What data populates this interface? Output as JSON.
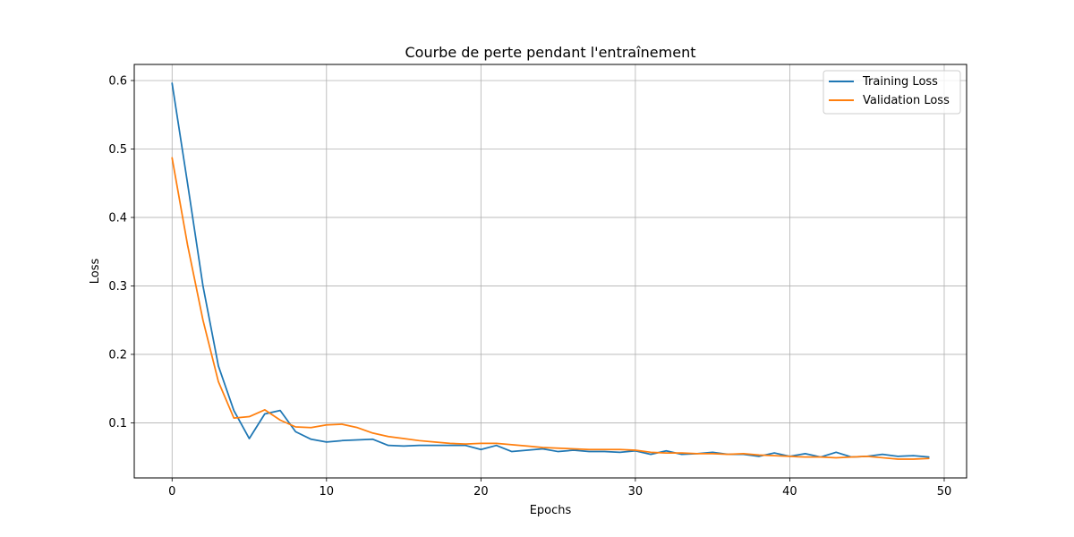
{
  "chart_data": {
    "type": "line",
    "title": "Courbe de perte pendant l'entraînement",
    "xlabel": "Epochs",
    "ylabel": "Loss",
    "xlim": [
      -2.45,
      51.45
    ],
    "ylim": [
      0.0195,
      0.6235
    ],
    "xticks": [
      0,
      10,
      20,
      30,
      40,
      50
    ],
    "yticks": [
      0.1,
      0.2,
      0.3,
      0.4,
      0.5,
      0.6
    ],
    "xtick_labels": [
      "0",
      "10",
      "20",
      "30",
      "40",
      "50"
    ],
    "ytick_labels": [
      "0.1",
      "0.2",
      "0.3",
      "0.4",
      "0.5",
      "0.6"
    ],
    "grid": true,
    "legend_position": "top-right",
    "x": [
      0,
      1,
      2,
      3,
      4,
      5,
      6,
      7,
      8,
      9,
      10,
      11,
      12,
      13,
      14,
      15,
      16,
      17,
      18,
      19,
      20,
      21,
      22,
      23,
      24,
      25,
      26,
      27,
      28,
      29,
      30,
      31,
      32,
      33,
      34,
      35,
      36,
      37,
      38,
      39,
      40,
      41,
      42,
      43,
      44,
      45,
      46,
      47,
      48,
      49
    ],
    "series": [
      {
        "name": "Training Loss",
        "color": "#1f77b4",
        "values": [
          0.596,
          0.45,
          0.3,
          0.183,
          0.118,
          0.077,
          0.113,
          0.118,
          0.087,
          0.076,
          0.072,
          0.074,
          0.075,
          0.076,
          0.067,
          0.066,
          0.067,
          0.067,
          0.067,
          0.067,
          0.061,
          0.067,
          0.058,
          0.06,
          0.062,
          0.058,
          0.06,
          0.058,
          0.058,
          0.057,
          0.059,
          0.054,
          0.059,
          0.054,
          0.055,
          0.057,
          0.054,
          0.054,
          0.051,
          0.056,
          0.051,
          0.055,
          0.05,
          0.057,
          0.05,
          0.051,
          0.054,
          0.051,
          0.052,
          0.05
        ]
      },
      {
        "name": "Validation Loss",
        "color": "#ff7f0e",
        "values": [
          0.487,
          0.36,
          0.25,
          0.16,
          0.107,
          0.109,
          0.119,
          0.104,
          0.094,
          0.093,
          0.097,
          0.098,
          0.093,
          0.085,
          0.08,
          0.077,
          0.074,
          0.072,
          0.07,
          0.069,
          0.07,
          0.07,
          0.068,
          0.066,
          0.064,
          0.063,
          0.062,
          0.061,
          0.061,
          0.061,
          0.06,
          0.057,
          0.056,
          0.056,
          0.055,
          0.055,
          0.054,
          0.055,
          0.053,
          0.052,
          0.051,
          0.05,
          0.05,
          0.049,
          0.05,
          0.051,
          0.049,
          0.047,
          0.047,
          0.048
        ]
      }
    ]
  }
}
